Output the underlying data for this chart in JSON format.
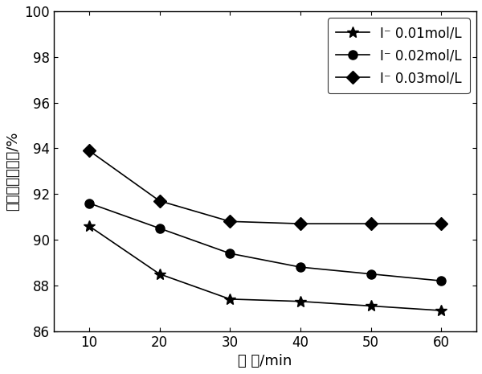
{
  "x": [
    10,
    20,
    30,
    40,
    50,
    60
  ],
  "series": [
    {
      "label": "I⁻ 0.01mol/L",
      "values": [
        90.6,
        88.5,
        87.4,
        87.3,
        87.1,
        86.9
      ],
      "marker": "*",
      "markersize": 10
    },
    {
      "label": "I⁻ 0.02mol/L",
      "values": [
        91.6,
        90.5,
        89.4,
        88.8,
        88.5,
        88.2
      ],
      "marker": "o",
      "markersize": 8
    },
    {
      "label": "I⁻ 0.03mol/L",
      "values": [
        93.9,
        91.7,
        90.8,
        90.7,
        90.7,
        90.7
      ],
      "marker": "D",
      "markersize": 8
    }
  ],
  "xlabel": "时 间/min",
  "ylabel": "单质态汞去除率/%",
  "ylim": [
    86,
    100
  ],
  "yticks": [
    86,
    88,
    90,
    92,
    94,
    96,
    98,
    100
  ],
  "xlim": [
    5,
    65
  ],
  "xticks": [
    10,
    20,
    30,
    40,
    50,
    60
  ],
  "line_color": "#000000",
  "background_color": "#ffffff",
  "fontsize_label": 13,
  "fontsize_tick": 12,
  "fontsize_legend": 12
}
